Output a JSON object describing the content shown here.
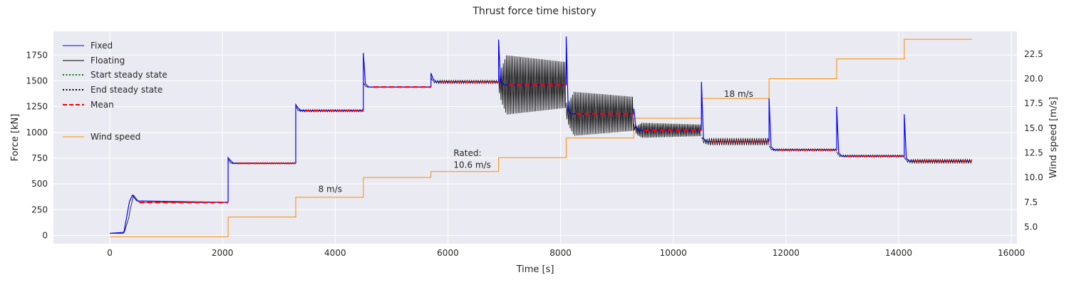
{
  "chart_data": {
    "type": "line",
    "title": "Thrust force time history",
    "xlabel": "Time [s]",
    "ylabel": "Force [kN]",
    "y2label": "Wind speed [m/s]",
    "xlim": [
      -1000,
      16100
    ],
    "ylim": [
      -80,
      1980
    ],
    "y2lim": [
      3.3,
      24.8
    ],
    "xticks": [
      0,
      2000,
      4000,
      6000,
      8000,
      10000,
      12000,
      14000,
      16000
    ],
    "yticks": [
      0,
      250,
      500,
      750,
      1000,
      1250,
      1500,
      1750
    ],
    "y2ticks": [
      5.0,
      7.5,
      10.0,
      12.5,
      15.0,
      17.5,
      20.0,
      22.5
    ],
    "grid": true,
    "legend_position": "upper-left",
    "legend": [
      "Fixed",
      "Floating",
      "Start steady state",
      "End steady state",
      "Mean",
      "Wind speed"
    ],
    "colors": {
      "fixed": "#0000ff",
      "floating": "#000000",
      "start_steady": "#008000",
      "end_steady": "#000000",
      "mean": "#ff0000",
      "wind": "#ff8c00",
      "plot_bg": "#eaeaf2",
      "grid": "#ffffff"
    },
    "segments": [
      {
        "t0": 0,
        "t1": 2100,
        "wind": 4,
        "mean": 320,
        "fixed_peak": 390,
        "float_amp": 5
      },
      {
        "t0": 2100,
        "t1": 3300,
        "wind": 6,
        "mean": 700,
        "fixed_peak": 755,
        "float_amp": 8
      },
      {
        "t0": 3300,
        "t1": 4500,
        "wind": 8,
        "mean": 1210,
        "fixed_peak": 1270,
        "float_amp": 12
      },
      {
        "t0": 4500,
        "t1": 5700,
        "wind": 10,
        "mean": 1440,
        "fixed_peak": 1770,
        "float_amp": 15
      },
      {
        "t0": 5700,
        "t1": 6900,
        "wind": 10.6,
        "mean": 1490,
        "fixed_peak": 1575,
        "float_amp": 20
      },
      {
        "t0": 6900,
        "t1": 8100,
        "wind": 12,
        "mean": 1460,
        "fixed_peak": 1900,
        "float_amp": 300
      },
      {
        "t0": 8100,
        "t1": 9300,
        "wind": 14,
        "mean": 1180,
        "fixed_peak": 1930,
        "float_amp": 220
      },
      {
        "t0": 9300,
        "t1": 10500,
        "wind": 16,
        "mean": 1020,
        "fixed_peak": 1230,
        "float_amp": 75
      },
      {
        "t0": 10500,
        "t1": 11700,
        "wind": 18,
        "mean": 910,
        "fixed_peak": 1490,
        "float_amp": 35
      },
      {
        "t0": 11700,
        "t1": 12900,
        "wind": 20,
        "mean": 830,
        "fixed_peak": 1330,
        "float_amp": 25
      },
      {
        "t0": 12900,
        "t1": 14100,
        "wind": 22,
        "mean": 770,
        "fixed_peak": 1250,
        "float_amp": 20
      },
      {
        "t0": 14100,
        "t1": 15300,
        "wind": 24,
        "mean": 720,
        "fixed_peak": 1175,
        "float_amp": 18
      }
    ],
    "annotations": [
      {
        "text": "8 m/s",
        "x": 3700,
        "y": 420
      },
      {
        "text": "Rated:",
        "x": 6100,
        "y": 770
      },
      {
        "text": "10.6 m/s",
        "x": 6100,
        "y": 655
      },
      {
        "text": "18 m/s",
        "x": 10900,
        "y": 1345
      }
    ]
  }
}
